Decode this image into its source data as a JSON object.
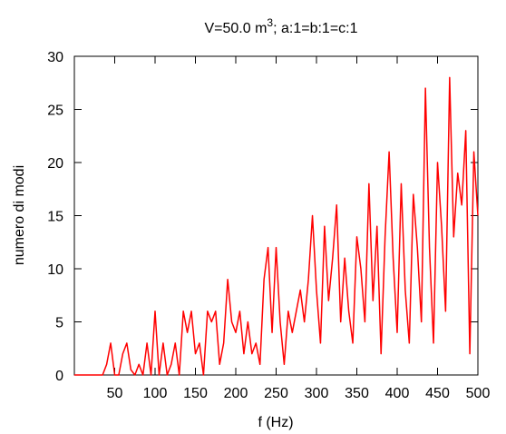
{
  "chart_data": {
    "type": "line",
    "title": {
      "text": "V=50.0 m",
      "superscript": "3",
      "rest": "; a:1=b:1=c:1"
    },
    "xlabel": "f (Hz)",
    "ylabel": "numero di modi",
    "xlim": [
      0,
      500
    ],
    "xticks": [
      50,
      100,
      150,
      200,
      250,
      300,
      350,
      400,
      450,
      500
    ],
    "ylim": [
      0,
      30
    ],
    "yticks": [
      0,
      5,
      10,
      15,
      20,
      25,
      30
    ],
    "x": [
      0,
      5,
      10,
      15,
      20,
      25,
      30,
      35,
      40,
      45,
      50,
      55,
      60,
      65,
      70,
      75,
      80,
      85,
      90,
      95,
      100,
      105,
      110,
      115,
      120,
      125,
      130,
      135,
      140,
      145,
      150,
      155,
      160,
      165,
      170,
      175,
      180,
      185,
      190,
      195,
      200,
      205,
      210,
      215,
      220,
      225,
      230,
      235,
      240,
      245,
      250,
      255,
      260,
      265,
      270,
      275,
      280,
      285,
      290,
      295,
      300,
      305,
      310,
      315,
      320,
      325,
      330,
      335,
      340,
      345,
      350,
      355,
      360,
      365,
      370,
      375,
      380,
      385,
      390,
      395,
      400,
      405,
      410,
      415,
      420,
      425,
      430,
      435,
      440,
      445,
      450,
      455,
      460,
      465,
      470,
      475,
      480,
      485,
      490,
      495,
      500
    ],
    "series": [
      {
        "color": "#ff0000",
        "values": [
          0,
          0,
          0,
          0,
          0,
          0,
          0,
          0,
          1,
          3,
          0,
          0,
          2,
          3,
          0.5,
          0,
          1,
          0,
          3,
          0,
          6,
          0,
          3,
          0,
          1,
          3,
          0,
          6,
          4,
          6,
          2,
          3,
          0,
          6,
          5,
          6,
          1,
          3,
          9,
          5,
          4,
          6,
          2,
          5,
          2,
          3,
          1,
          9,
          12,
          4,
          12,
          5,
          1,
          6,
          4,
          6,
          8,
          5,
          9,
          15,
          8,
          3,
          14,
          7,
          11,
          16,
          5,
          11,
          6,
          3,
          13,
          10,
          5,
          18,
          7,
          14,
          2,
          13,
          21,
          11,
          4,
          18,
          8,
          3,
          17,
          12,
          5,
          27,
          12,
          3,
          20,
          14,
          6,
          28,
          13,
          19,
          16,
          23,
          2,
          21,
          15
        ]
      }
    ]
  }
}
